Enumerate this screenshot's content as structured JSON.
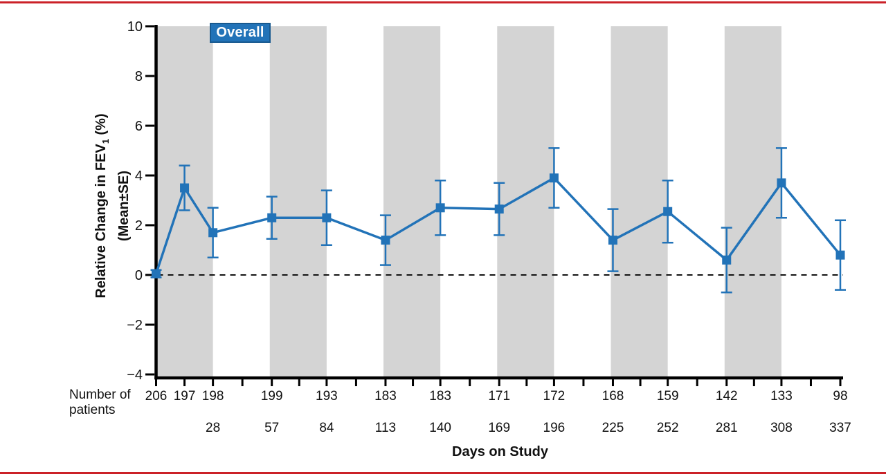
{
  "figure": {
    "rule_color": "#cb2128",
    "background": "#ffffff"
  },
  "chart_data": {
    "type": "line",
    "legend_label": "Overall",
    "legend_position": "top-left-inside",
    "x_axis_title": "Days on Study",
    "y_axis_title": {
      "prefix": "Relative Change in FEV",
      "subscript": "1",
      "suffix": " (%)",
      "line2": "(Mean±SE)"
    },
    "caption_line1": "Number of",
    "caption_line2": "patients",
    "ylim": [
      -4,
      10
    ],
    "yticks": [
      10,
      8,
      6,
      4,
      2,
      0,
      -2,
      -4
    ],
    "xlim": [
      0,
      337
    ],
    "x": [
      0,
      14,
      28,
      57,
      84,
      113,
      140,
      169,
      196,
      225,
      252,
      281,
      308,
      337
    ],
    "x_ticks": [
      0,
      14,
      28,
      42.5,
      57,
      70.5,
      84,
      98.5,
      113,
      126.5,
      140,
      154.5,
      169,
      182.5,
      196,
      210.5,
      225,
      238.5,
      252,
      266.5,
      281,
      294.5,
      308,
      322.5,
      337
    ],
    "x_label_days": [
      28,
      57,
      84,
      113,
      140,
      169,
      196,
      225,
      252,
      281,
      308,
      337
    ],
    "n_patients": [
      206,
      197,
      198,
      199,
      193,
      183,
      183,
      171,
      172,
      168,
      159,
      142,
      133,
      98
    ],
    "series": [
      {
        "name": "Overall",
        "mean": [
          0.05,
          3.5,
          1.7,
          2.3,
          2.3,
          1.4,
          2.7,
          2.65,
          3.9,
          1.4,
          2.55,
          0.6,
          3.7,
          0.8
        ],
        "se": [
          0.15,
          0.9,
          1.0,
          0.85,
          1.1,
          1.0,
          1.1,
          1.05,
          1.2,
          1.25,
          1.25,
          1.3,
          1.4,
          1.4
        ]
      }
    ],
    "zero_reference_line": 0,
    "shaded_day_ranges": [
      [
        0,
        28
      ],
      [
        56,
        84
      ],
      [
        112,
        140
      ],
      [
        168,
        196
      ],
      [
        224,
        252
      ],
      [
        280,
        308
      ]
    ],
    "grid": false,
    "colors": {
      "line": "#2273b8",
      "band": "#d4d4d4",
      "legend_fill": "#2273b8",
      "legend_border": "#18598f",
      "zero_line": "#111111",
      "axis": "#000000"
    }
  }
}
